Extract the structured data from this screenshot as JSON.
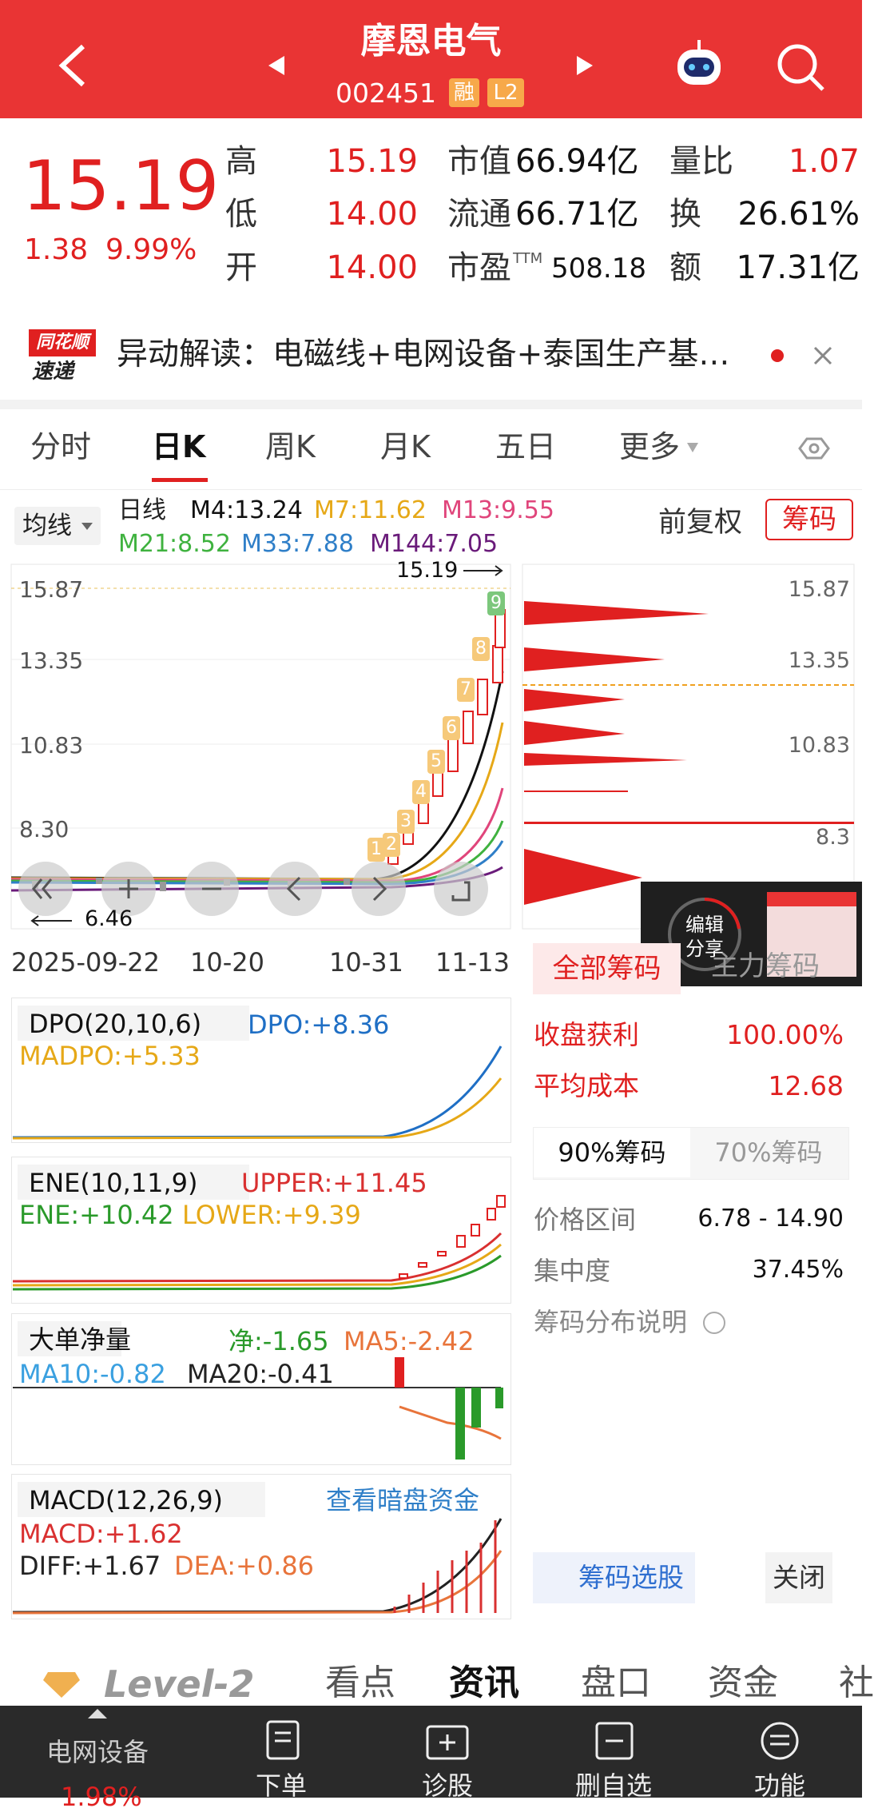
{
  "header": {
    "title": "摩恩电气",
    "code": "002451",
    "badges": [
      "融",
      "L2"
    ]
  },
  "quote": {
    "price": "15.19",
    "change": "1.38",
    "change_pct": "9.99%",
    "stats": [
      {
        "label": "高",
        "value": "15.19"
      },
      {
        "label": "市值",
        "value": "66.94亿"
      },
      {
        "label": "量比",
        "value": "1.07"
      },
      {
        "label": "低",
        "value": "14.00"
      },
      {
        "label": "流通",
        "value": "66.71亿"
      },
      {
        "label": "换",
        "value": "26.61%"
      },
      {
        "label": "开",
        "value": "14.00"
      },
      {
        "label": "市盈",
        "sup": "TTM",
        "value": "508.18"
      },
      {
        "label": "额",
        "value": "17.31亿"
      }
    ]
  },
  "news": {
    "logo": [
      "同花顺",
      "速递"
    ],
    "text": "异动解读：电磁线+电网设备+泰国生产基…"
  },
  "tabs": [
    "分时",
    "日K",
    "周K",
    "月K",
    "五日",
    "更多"
  ],
  "active_tab": 1,
  "kline": {
    "ma_selector": "均线",
    "period": "日线",
    "ma": [
      {
        "label": "M4:13.24",
        "color": "#111111"
      },
      {
        "label": "M7:11.62",
        "color": "#e6a817"
      },
      {
        "label": "M13:9.55",
        "color": "#e0457b"
      },
      {
        "label": "M21:8.52",
        "color": "#3fb23f"
      },
      {
        "label": "M33:7.88",
        "color": "#2f7fc8"
      },
      {
        "label": "M144:7.05",
        "color": "#6a1b7a"
      }
    ],
    "adjust": "前复权",
    "chips_button": "筹码",
    "price_ticks": [
      "15.87",
      "13.35",
      "10.83",
      "8.30"
    ],
    "last_price": "15.19",
    "low_price": "6.46",
    "dates": [
      "2025-09-22",
      "10-20",
      "10-31",
      "11-13"
    ],
    "signal_badges": [
      "1",
      "2",
      "3",
      "4",
      "5",
      "6",
      "7",
      "8",
      "9"
    ]
  },
  "chips": {
    "tick_labels": [
      "15.87",
      "13.35",
      "10.83",
      "8.3"
    ],
    "tabs": [
      "全部筹码",
      "主力筹码"
    ],
    "rows": [
      {
        "label": "收盘获利",
        "value": "100.00%"
      },
      {
        "label": "平均成本",
        "value": "12.68"
      }
    ],
    "ratio_tabs": [
      "90%筹码",
      "70%筹码"
    ],
    "details": [
      {
        "label": "价格区间",
        "value": "6.78 - 14.90"
      },
      {
        "label": "集中度",
        "value": "37.45%"
      }
    ],
    "help": "筹码分布说明",
    "buttons": [
      "筹码选股",
      "关闭"
    ]
  },
  "share_overlay": [
    "编辑",
    "分享"
  ],
  "indicators": [
    {
      "name": "DPO(20,10,6)",
      "values": [
        {
          "text": "DPO:+8.36",
          "color": "#1f6fc5"
        },
        {
          "text": "MADPO:+5.33",
          "color": "#e6a817"
        }
      ]
    },
    {
      "name": "ENE(10,11,9)",
      "values": [
        {
          "text": "UPPER:+11.45",
          "color": "#d93030"
        },
        {
          "text": "ENE:+10.42",
          "color": "#2a9a2a"
        },
        {
          "text": "LOWER:+9.39",
          "color": "#e6a817"
        }
      ]
    },
    {
      "name": "大单净量",
      "values": [
        {
          "text": "净:-1.65",
          "color": "#2a9a2a"
        },
        {
          "text": "MA5:-2.42",
          "color": "#e8743b"
        },
        {
          "text": "MA10:-0.82",
          "color": "#3aa0e0"
        },
        {
          "text": "MA20:-0.41",
          "color": "#222222"
        }
      ]
    },
    {
      "name": "MACD(12,26,9)",
      "link": "查看暗盘资金",
      "values": [
        {
          "text": "MACD:+1.62",
          "color": "#d93030"
        },
        {
          "text": "DIFF:+1.67",
          "color": "#222222"
        },
        {
          "text": "DEA:+0.86",
          "color": "#e8743b"
        }
      ]
    }
  ],
  "bottom_tabs": [
    "Level-2",
    "看点",
    "资讯",
    "盘口",
    "资金",
    "社"
  ],
  "active_bottom_tab": 2,
  "nav": {
    "sector": "电网设备",
    "sector_change": "1.98%",
    "items": [
      "下单",
      "诊股",
      "删自选",
      "功能"
    ]
  }
}
